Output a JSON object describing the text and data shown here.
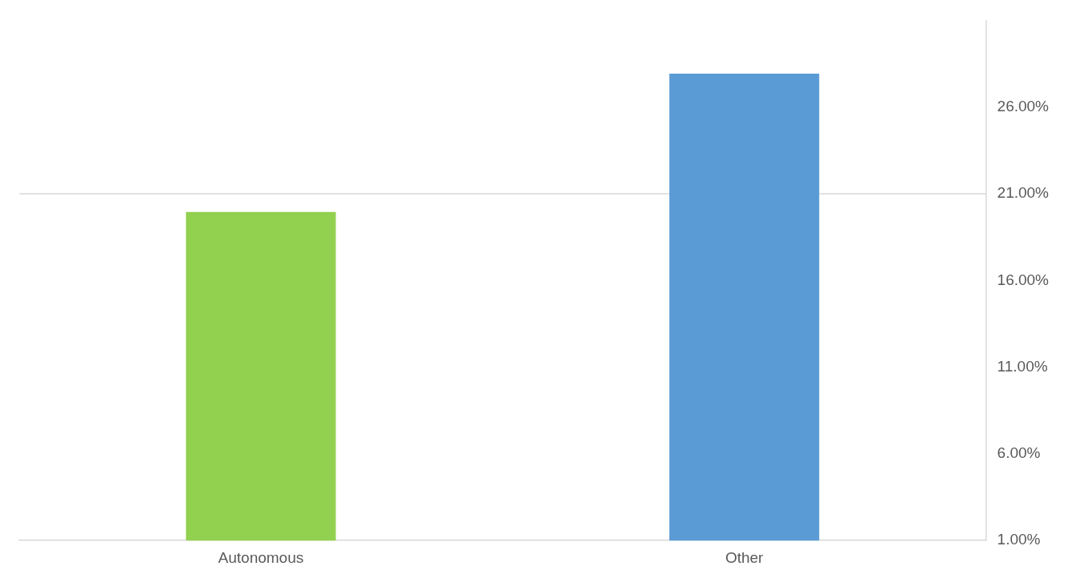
{
  "chart_data": {
    "type": "bar",
    "categories": [
      "Autonomous",
      "Other"
    ],
    "values": [
      19.95,
      27.93
    ],
    "colors": [
      "#92d050",
      "#5b9bd5"
    ],
    "ylim": [
      1,
      31
    ],
    "yticks": [
      {
        "value": 1,
        "label": "1.00%"
      },
      {
        "value": 6,
        "label": "6.00%"
      },
      {
        "value": 11,
        "label": "11.00%"
      },
      {
        "value": 16,
        "label": "16.00%"
      },
      {
        "value": 21,
        "label": "21.00%"
      },
      {
        "value": 26,
        "label": "26.00%"
      }
    ],
    "grid": false,
    "ref_lines": [
      {
        "axis": "y",
        "value": 21,
        "color": "#d9d9d9"
      }
    ]
  }
}
